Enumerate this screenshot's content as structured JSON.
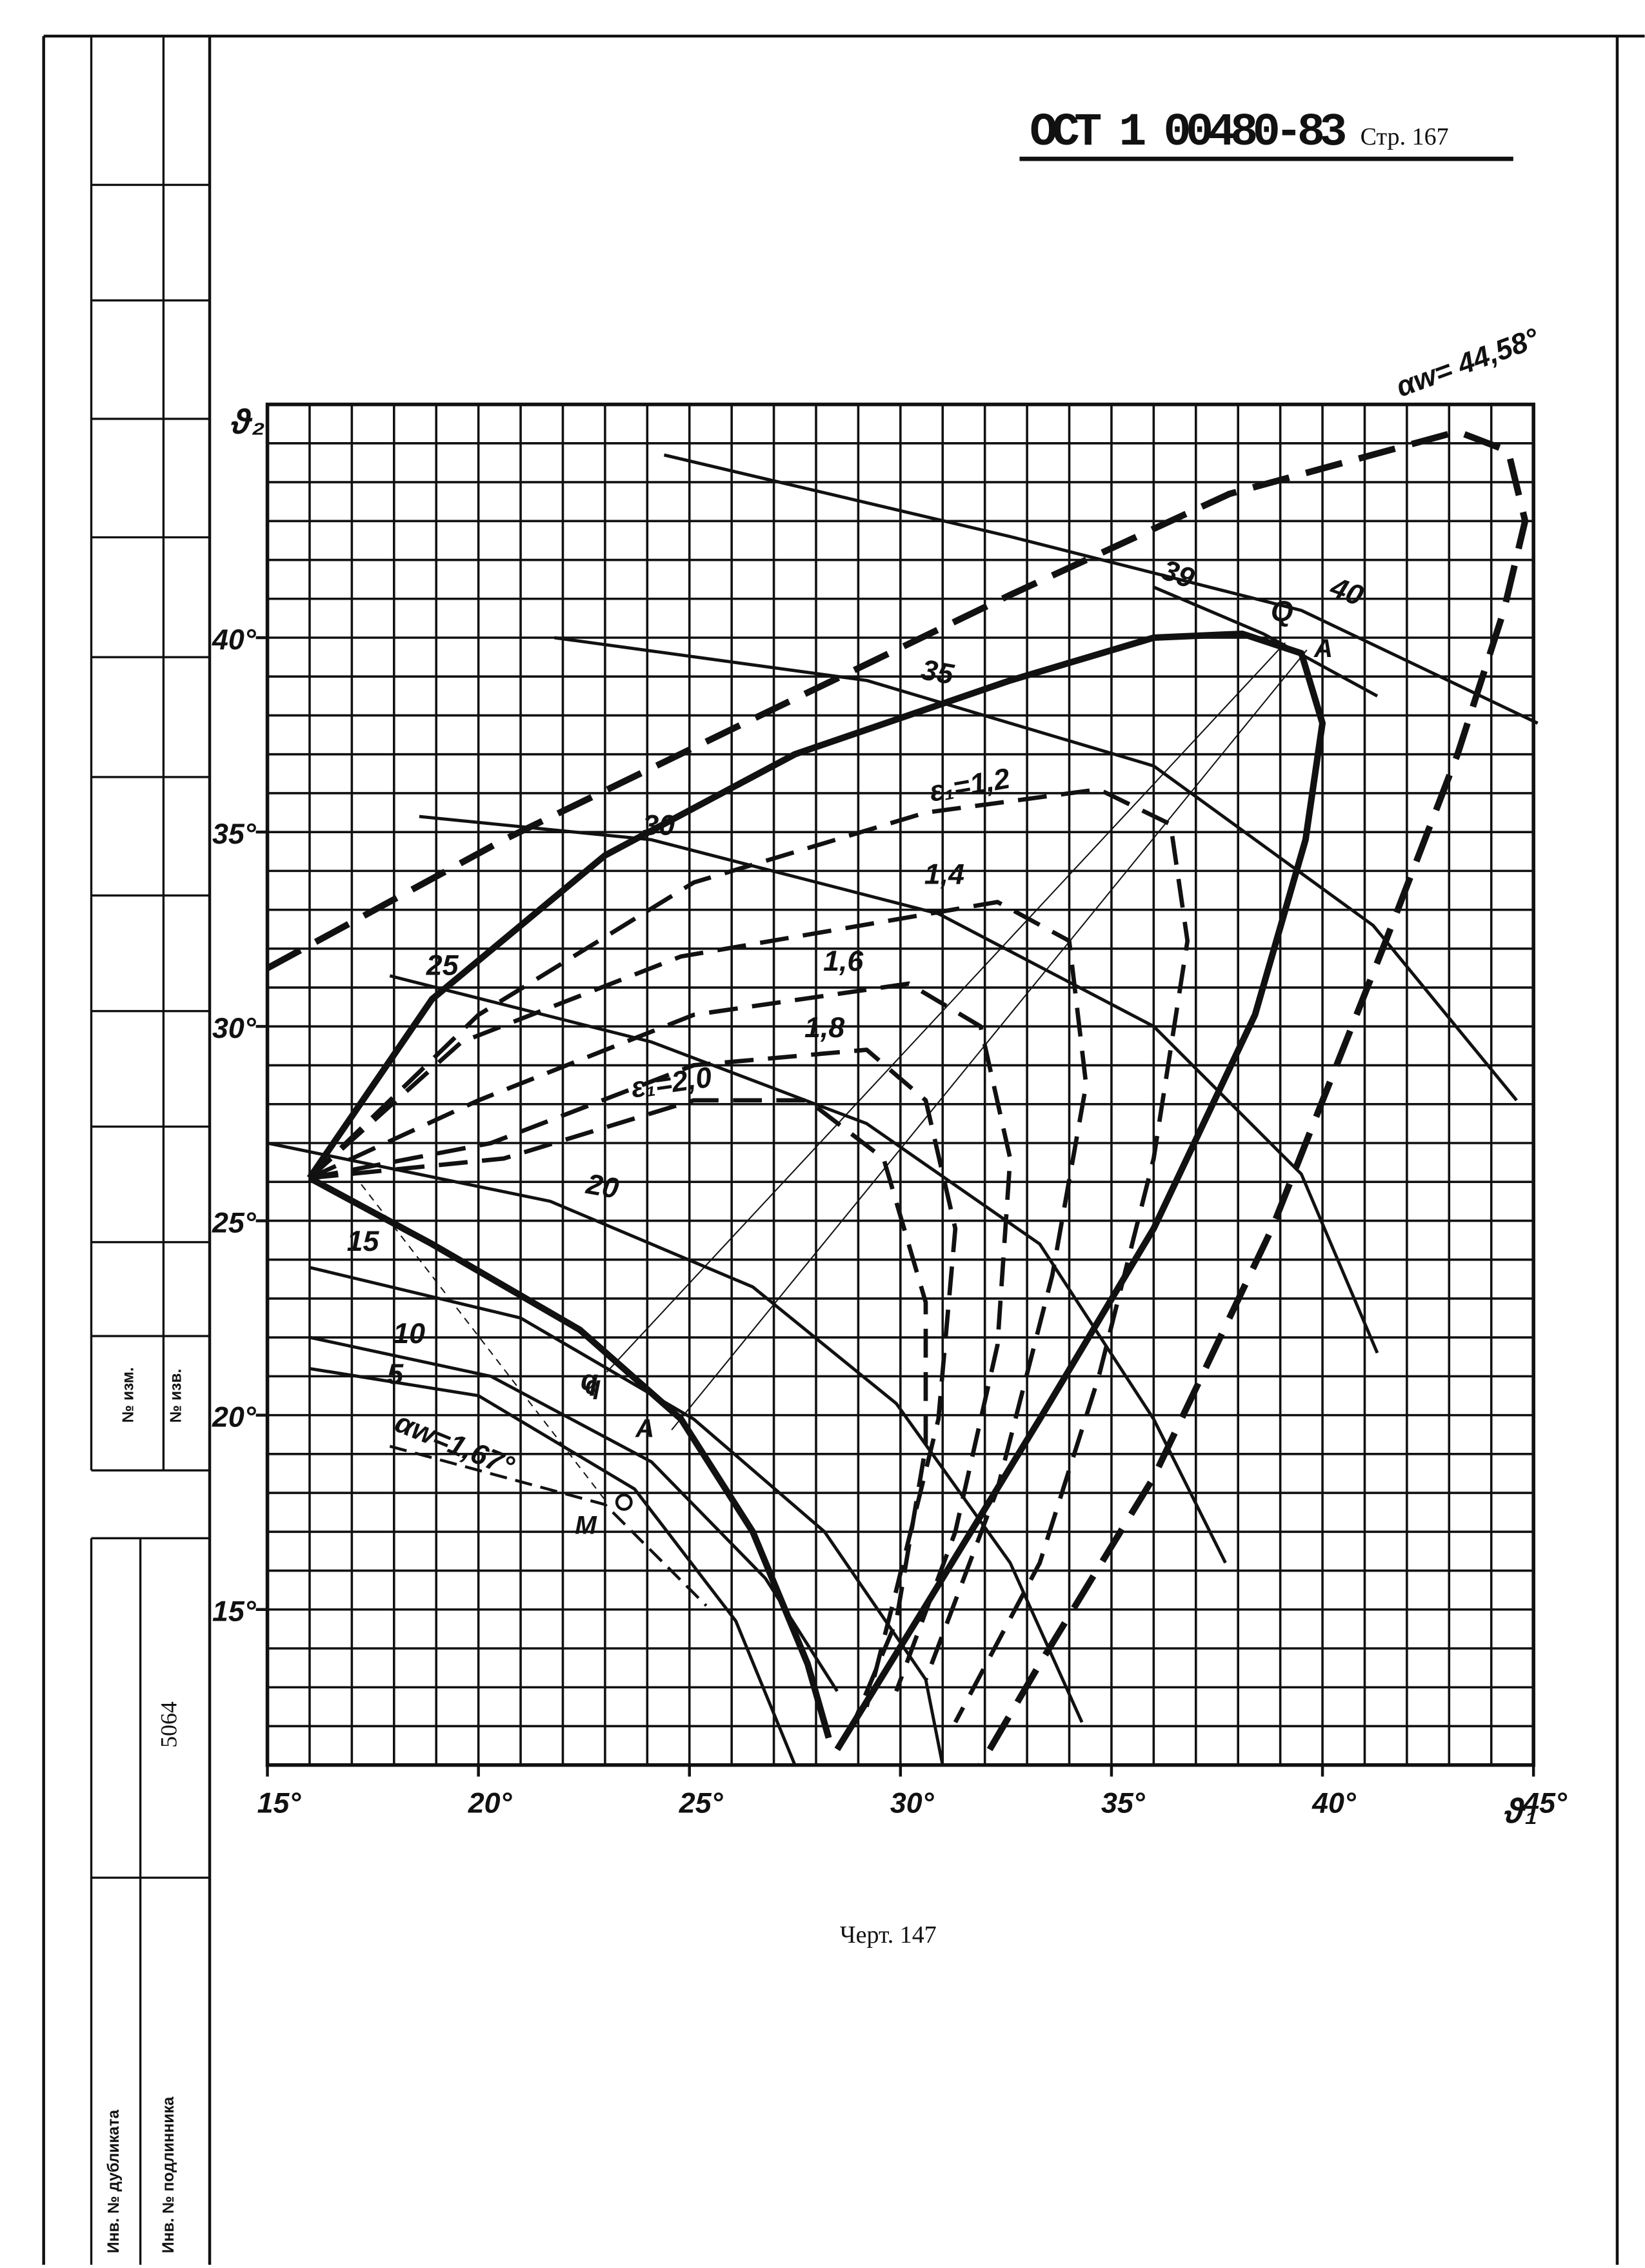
{
  "header": {
    "code": "ОСТ 1 00480-83",
    "page": "Стр. 167"
  },
  "caption": "Черт. 147",
  "stamp": {
    "change_no": "№ изм.",
    "notice_no": "№ изв.",
    "inventory": "5064",
    "duplicate": "Инв. № дубликата",
    "original": "Инв. № подлинника"
  },
  "chart_data": {
    "type": "line",
    "x_label": "ϑ₁",
    "y_label": "ϑ₂",
    "xlim": [
      15,
      45
    ],
    "ylim": [
      11,
      46
    ],
    "xticks": [
      {
        "value": 15,
        "label": "15°"
      },
      {
        "value": 20,
        "label": "20°"
      },
      {
        "value": 25,
        "label": "25°"
      },
      {
        "value": 30,
        "label": "30°"
      },
      {
        "value": 35,
        "label": "35°"
      },
      {
        "value": 40,
        "label": "40°"
      },
      {
        "value": 45,
        "label": "45°"
      }
    ],
    "yticks": [
      {
        "value": 15,
        "label": "15°"
      },
      {
        "value": 20,
        "label": "20°"
      },
      {
        "value": 25,
        "label": "25°"
      },
      {
        "value": 30,
        "label": "30°"
      },
      {
        "value": 35,
        "label": "35°"
      },
      {
        "value": 40,
        "label": "40°"
      }
    ],
    "grid": true,
    "series": [
      {
        "name": "αw= 44,58°",
        "color": "#111",
        "style": "heavy-dashed",
        "x": [
          15,
          20.6,
          26.3,
          32.6,
          37.8,
          43.2,
          44.4,
          44.8,
          44.3,
          43.2,
          41.5,
          38.8,
          36,
          33.3,
          31.9
        ],
        "values": [
          31.5,
          34.8,
          37.8,
          41.1,
          43.7,
          45.3,
          44.8,
          43,
          40.7,
          37,
          32.2,
          24.8,
          18.4,
          13.6,
          11
        ]
      },
      {
        "name": "Q",
        "color": "#111",
        "style": "heavy",
        "x": [
          16,
          18.9,
          23,
          27.5,
          32.6,
          36,
          38.1,
          39.5,
          40,
          39.6,
          38.4,
          36,
          33.3,
          30.6,
          28.5
        ],
        "values": [
          26.1,
          30.7,
          34.4,
          37,
          38.9,
          40,
          40.1,
          39.6,
          37.8,
          34.8,
          30.3,
          24.8,
          19.9,
          15.1,
          11.4
        ]
      },
      {
        "name": "q",
        "color": "#111",
        "style": "heavy",
        "x": [
          16,
          18.9,
          22.4,
          24.8,
          26.5,
          27.8,
          28.3
        ],
        "values": [
          26.1,
          24.4,
          22.2,
          19.9,
          17,
          13.6,
          11.7
        ]
      },
      {
        "name": "ε₁=1,2",
        "color": "#111",
        "style": "dashed",
        "x": [
          16,
          20,
          25.1,
          30.6,
          34.7,
          36.4,
          36.8,
          36,
          34.7,
          33.3,
          31.3
        ],
        "values": [
          26.1,
          30.3,
          33.7,
          35.5,
          36.1,
          35.2,
          32.2,
          26.6,
          21,
          16.2,
          12.1
        ]
      },
      {
        "name": "1,4",
        "color": "#111",
        "style": "dashed",
        "x": [
          16,
          19.6,
          24.8,
          32.3,
          34,
          34.4,
          33.6,
          32.3,
          30.6
        ],
        "values": [
          26.1,
          29.6,
          31.8,
          33.2,
          32.2,
          28.5,
          23.6,
          18.1,
          13.2
        ]
      },
      {
        "name": "1,6",
        "color": "#111",
        "style": "dashed",
        "x": [
          16,
          20,
          25.1,
          30.2,
          31.9,
          32.6,
          32.3,
          31.3,
          29.9
        ],
        "values": [
          26.1,
          28.1,
          30.3,
          31.1,
          30,
          26.6,
          21.8,
          17,
          12.9
        ]
      },
      {
        "name": "1,8",
        "color": "#111",
        "style": "dashed",
        "x": [
          16,
          20.3,
          25.1,
          29.2,
          30.6,
          31.3,
          30.9,
          29.9,
          29.2
        ],
        "values": [
          26.1,
          27,
          29,
          29.4,
          28.1,
          24.8,
          19.9,
          15.5,
          12.5
        ]
      },
      {
        "name": "ε₁=2,0",
        "color": "#111",
        "style": "dashed",
        "x": [
          16,
          20.6,
          25.1,
          27.8,
          29.6,
          30.6,
          30.6,
          29.9,
          28.9
        ],
        "values": [
          26.1,
          26.6,
          28.1,
          28.1,
          26.6,
          22.9,
          19.2,
          14.7,
          12.1
        ]
      },
      {
        "name": "40",
        "color": "#111",
        "style": "thin",
        "x": [
          24.4,
          32.6,
          39.5,
          45.1
        ],
        "values": [
          44.7,
          42.6,
          40.7,
          37.8
        ]
      },
      {
        "name": "39",
        "color": "#111",
        "style": "thin",
        "x": [
          36,
          38.6,
          41.3
        ],
        "values": [
          41.3,
          40.1,
          38.5
        ]
      },
      {
        "name": "35",
        "color": "#111",
        "style": "thin",
        "x": [
          21.8,
          29.2,
          36,
          41.2,
          44.6
        ],
        "values": [
          40,
          38.9,
          36.7,
          32.6,
          28.1
        ]
      },
      {
        "name": "30",
        "color": "#111",
        "style": "thin",
        "x": [
          18.6,
          24.1,
          30.9,
          36,
          39.5,
          41.3
        ],
        "values": [
          35.4,
          34.8,
          32.9,
          30,
          26.2,
          21.6
        ]
      },
      {
        "name": "25",
        "color": "#111",
        "style": "thin",
        "x": [
          17.9,
          24.1,
          29.2,
          33.3,
          36,
          37.7
        ],
        "values": [
          31.3,
          29.6,
          27.5,
          24.4,
          19.9,
          16.2
        ]
      },
      {
        "name": "20",
        "color": "#111",
        "style": "thin",
        "x": [
          15,
          21.7,
          26.5,
          29.9,
          32.6,
          34.3
        ],
        "values": [
          27,
          25.5,
          23.3,
          20.3,
          16.2,
          12.1
        ]
      },
      {
        "name": "15",
        "color": "#111",
        "style": "thin",
        "x": [
          16,
          21,
          25.1,
          28.2,
          30.6,
          31
        ],
        "values": [
          23.8,
          22.5,
          19.9,
          17,
          13.2,
          11
        ]
      },
      {
        "name": "10",
        "color": "#111",
        "style": "thin",
        "x": [
          16,
          20.3,
          24.1,
          26.8,
          28.5
        ],
        "values": [
          22,
          21,
          18.8,
          15.8,
          12.9
        ]
      },
      {
        "name": "5",
        "color": "#111",
        "style": "thin",
        "x": [
          16,
          20,
          23.7,
          26.1,
          27.5
        ],
        "values": [
          21.2,
          20.5,
          18.1,
          14.7,
          11
        ]
      },
      {
        "name": "αw=1,67°",
        "color": "#111",
        "style": "thin-dashed",
        "x": [
          17.9,
          23,
          25.4
        ],
        "values": [
          19.2,
          17.7,
          15.1
        ]
      }
    ],
    "annotations": [
      "A",
      "q",
      "A",
      "M"
    ]
  }
}
